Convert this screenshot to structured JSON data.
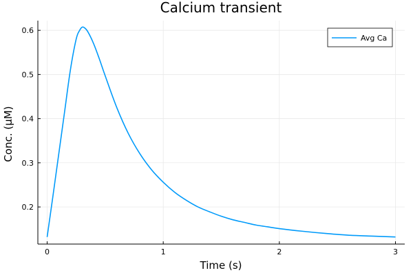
{
  "chart_data": {
    "type": "line",
    "title": "Calcium transient",
    "xlabel": "Time (s)",
    "ylabel": "Conc. (μM)",
    "xlim": [
      -0.08,
      3.08
    ],
    "ylim": [
      0.116,
      0.622
    ],
    "xticks": [
      0,
      1,
      2,
      3
    ],
    "xtick_labels": [
      "0",
      "1",
      "2",
      "3"
    ],
    "yticks": [
      0.2,
      0.3,
      0.4,
      0.5,
      0.6
    ],
    "ytick_labels": [
      "0.2",
      "0.3",
      "0.4",
      "0.5",
      "0.6"
    ],
    "grid": true,
    "legend_position": "top-right",
    "series": [
      {
        "name": "Avg Ca",
        "color": "#009AFA",
        "x": [
          0,
          0.05,
          0.1,
          0.15,
          0.2,
          0.25,
          0.28,
          0.3,
          0.32,
          0.35,
          0.4,
          0.45,
          0.5,
          0.6,
          0.7,
          0.8,
          0.9,
          1.0,
          1.1,
          1.2,
          1.3,
          1.4,
          1.5,
          1.6,
          1.7,
          1.8,
          1.9,
          2.0,
          2.2,
          2.4,
          2.6,
          2.8,
          3.0
        ],
        "y": [
          0.132,
          0.225,
          0.32,
          0.415,
          0.51,
          0.58,
          0.6,
          0.607,
          0.606,
          0.597,
          0.57,
          0.535,
          0.497,
          0.425,
          0.366,
          0.32,
          0.284,
          0.256,
          0.233,
          0.215,
          0.2,
          0.189,
          0.179,
          0.171,
          0.165,
          0.159,
          0.155,
          0.151,
          0.145,
          0.14,
          0.136,
          0.134,
          0.132
        ]
      }
    ]
  }
}
